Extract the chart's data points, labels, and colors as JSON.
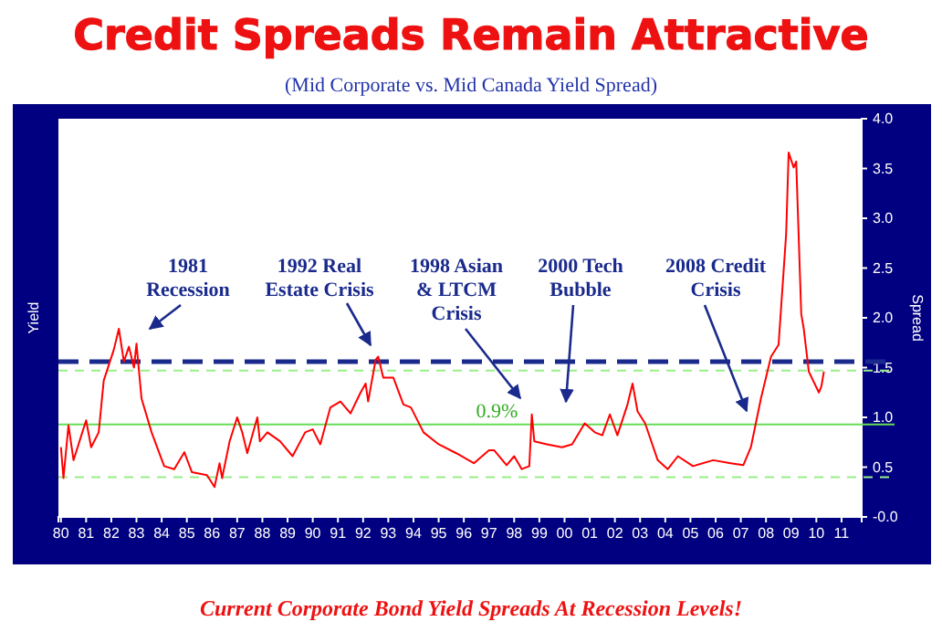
{
  "chart_data": {
    "type": "line",
    "title": "Credit Spreads Remain Attractive",
    "subtitle": "(Mid Corporate vs. Mid Canada Yield Spread)",
    "ylabel": "Yield",
    "y2label": "Spread",
    "x": [
      1980.0,
      1980.1,
      1980.3,
      1980.5,
      1981.0,
      1981.2,
      1981.5,
      1981.7,
      1982.1,
      1982.3,
      1982.5,
      1982.7,
      1982.9,
      1983.0,
      1983.2,
      1983.6,
      1984.1,
      1984.5,
      1984.9,
      1985.2,
      1985.8,
      1986.1,
      1986.3,
      1986.4,
      1986.7,
      1987.0,
      1987.2,
      1987.4,
      1987.8,
      1987.9,
      1988.2,
      1988.7,
      1989.2,
      1989.7,
      1990.0,
      1990.3,
      1990.7,
      1991.1,
      1991.5,
      1991.9,
      1992.1,
      1992.2,
      1992.5,
      1992.6,
      1992.8,
      1993.2,
      1993.6,
      1993.9,
      1994.4,
      1995.0,
      1995.7,
      1996.4,
      1997.0,
      1997.2,
      1997.7,
      1998.0,
      1998.3,
      1998.6,
      1998.7,
      1998.8,
      1999.3,
      1999.9,
      2000.3,
      2000.8,
      2001.2,
      2001.5,
      2001.8,
      2002.1,
      2002.5,
      2002.7,
      2002.9,
      2003.2,
      2003.7,
      2004.1,
      2004.5,
      2005.1,
      2005.9,
      2006.6,
      2007.1,
      2007.4,
      2007.8,
      2008.2,
      2008.5,
      2008.8,
      2008.9,
      2009.1,
      2009.2,
      2009.4,
      2009.5,
      2009.7,
      2010.1,
      2010.2,
      2010.3
    ],
    "series": [
      {
        "color": "#ff0000",
        "values": [
          0.7,
          0.39,
          0.92,
          0.57,
          0.97,
          0.7,
          0.85,
          1.37,
          1.68,
          1.89,
          1.56,
          1.71,
          1.5,
          1.74,
          1.19,
          0.85,
          0.51,
          0.48,
          0.65,
          0.45,
          0.42,
          0.3,
          0.54,
          0.39,
          0.76,
          1.0,
          0.85,
          0.64,
          1.0,
          0.76,
          0.85,
          0.76,
          0.61,
          0.85,
          0.88,
          0.73,
          1.1,
          1.16,
          1.04,
          1.25,
          1.34,
          1.16,
          1.58,
          1.61,
          1.4,
          1.4,
          1.13,
          1.1,
          0.85,
          0.73,
          0.64,
          0.54,
          0.67,
          0.67,
          0.52,
          0.61,
          0.48,
          0.51,
          1.03,
          0.76,
          0.73,
          0.7,
          0.73,
          0.94,
          0.85,
          0.82,
          1.03,
          0.82,
          1.13,
          1.34,
          1.06,
          0.94,
          0.57,
          0.48,
          0.61,
          0.51,
          0.57,
          0.54,
          0.52,
          0.7,
          1.19,
          1.61,
          1.73,
          2.84,
          3.66,
          3.51,
          3.57,
          2.04,
          1.89,
          1.46,
          1.25,
          1.31,
          1.46
        ]
      }
    ],
    "xlim": [
      1979.9,
      2011.8
    ],
    "xticks": [
      {
        "value": 1980,
        "label": "80"
      },
      {
        "value": 1981,
        "label": "81"
      },
      {
        "value": 1982,
        "label": "82"
      },
      {
        "value": 1983,
        "label": "83"
      },
      {
        "value": 1984,
        "label": "84"
      },
      {
        "value": 1985,
        "label": "85"
      },
      {
        "value": 1986,
        "label": "86"
      },
      {
        "value": 1987,
        "label": "87"
      },
      {
        "value": 1988,
        "label": "88"
      },
      {
        "value": 1989,
        "label": "89"
      },
      {
        "value": 1990,
        "label": "90"
      },
      {
        "value": 1991,
        "label": "91"
      },
      {
        "value": 1992,
        "label": "92"
      },
      {
        "value": 1993,
        "label": "93"
      },
      {
        "value": 1994,
        "label": "94"
      },
      {
        "value": 1995,
        "label": "95"
      },
      {
        "value": 1996,
        "label": "96"
      },
      {
        "value": 1997,
        "label": "97"
      },
      {
        "value": 1998,
        "label": "98"
      },
      {
        "value": 1999,
        "label": "99"
      },
      {
        "value": 2000,
        "label": "00"
      },
      {
        "value": 2001,
        "label": "01"
      },
      {
        "value": 2002,
        "label": "02"
      },
      {
        "value": 2003,
        "label": "03"
      },
      {
        "value": 2004,
        "label": "04"
      },
      {
        "value": 2005,
        "label": "05"
      },
      {
        "value": 2006,
        "label": "06"
      },
      {
        "value": 2007,
        "label": "07"
      },
      {
        "value": 2008,
        "label": "08"
      },
      {
        "value": 2009,
        "label": "09"
      },
      {
        "value": 2010,
        "label": "10"
      },
      {
        "value": 2011,
        "label": "11"
      }
    ],
    "ylim": [
      0,
      4
    ],
    "yticks": [
      {
        "value": 0,
        "label": "-0.0"
      },
      {
        "value": 0.5,
        "label": "0.5"
      },
      {
        "value": 1,
        "label": "1.0"
      },
      {
        "value": 1.5,
        "label": "1.5"
      },
      {
        "value": 2,
        "label": "2.0"
      },
      {
        "value": 2.5,
        "label": "2.5"
      },
      {
        "value": 3,
        "label": "3.0"
      },
      {
        "value": 3.5,
        "label": "3.5"
      },
      {
        "value": 4,
        "label": "4.0"
      }
    ],
    "ref_lines": [
      {
        "axis": "y",
        "value": 1.56,
        "color": "#1a2a8c",
        "line_style": "dashed"
      },
      {
        "axis": "y",
        "value": 1.47,
        "color": "#99ee88",
        "line_style": "dashed"
      },
      {
        "axis": "y",
        "value": 0.93,
        "color": "#66dd55",
        "line_style": "solid",
        "label": "0.9%"
      },
      {
        "axis": "y",
        "value": 0.4,
        "color": "#99ee88",
        "line_style": "dashed"
      }
    ],
    "annotations": [
      "1981\nRecession",
      "1992 Real\nEstate Crisis",
      "1998 Asian\n& LTCM\nCrisis",
      "2000 Tech\nBubble",
      "2008 Credit\nCrisis",
      "Current Corporate Bond Yield Spreads At Recession Levels!"
    ],
    "grid": false,
    "marker": "none",
    "line_style": "solid"
  }
}
